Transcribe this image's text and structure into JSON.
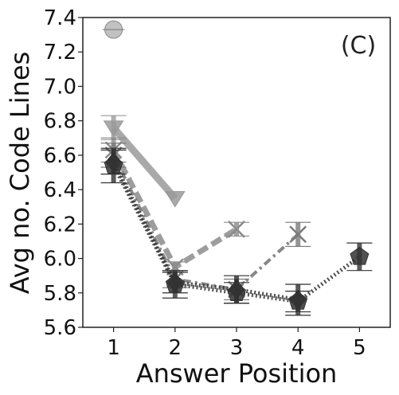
{
  "chart_data": {
    "type": "line",
    "panel_label": "(C)",
    "xlabel": "Answer Position",
    "ylabel": "Avg no. Code Lines",
    "xlim": [
      0.5,
      5.5
    ],
    "ylim": [
      5.6,
      7.4
    ],
    "xticks": [
      "1",
      "2",
      "3",
      "4",
      "5"
    ],
    "yticks": [
      "5.6",
      "5.8",
      "6.0",
      "6.2",
      "6.4",
      "6.6",
      "6.8",
      "7.0",
      "7.2",
      "7.4"
    ],
    "grid": false,
    "series": [
      {
        "marker": "circle",
        "color": "#a6a6a6",
        "line_style": "solid",
        "x": [
          1
        ],
        "y": [
          7.33
        ],
        "err": [
          0.0
        ]
      },
      {
        "marker": "triangle-down",
        "color": "#9a9a9a",
        "line_style": "solid",
        "x": [
          1,
          2
        ],
        "y": [
          6.76,
          6.35
        ],
        "err": [
          0.07,
          0.0
        ]
      },
      {
        "marker": "x",
        "color": "#8c8c8c",
        "line_style": "dashed",
        "x": [
          1,
          2,
          3
        ],
        "y": [
          6.63,
          5.95,
          6.17
        ],
        "err": [
          0.07,
          0.03,
          0.04
        ]
      },
      {
        "marker": "x",
        "color": "#7a7a7a",
        "line_style": "dashdot",
        "x": [
          1,
          2,
          3,
          4
        ],
        "y": [
          6.6,
          5.88,
          5.82,
          6.14
        ],
        "err": [
          0.07,
          0.05,
          0.06,
          0.07
        ]
      },
      {
        "marker": "diamond",
        "color": "#2e2e2e",
        "line_style": "dotted",
        "x": [
          1,
          2,
          3,
          4
        ],
        "y": [
          6.56,
          5.86,
          5.82,
          5.76
        ],
        "err": [
          0.07,
          0.06,
          0.08,
          0.09
        ]
      },
      {
        "marker": "pentagon",
        "color": "#333333",
        "line_style": "dotted",
        "x": [
          1,
          2,
          3,
          4,
          5
        ],
        "y": [
          6.54,
          5.85,
          5.8,
          5.75,
          6.01
        ],
        "err": [
          0.1,
          0.08,
          0.06,
          0.06,
          0.08
        ]
      }
    ]
  }
}
